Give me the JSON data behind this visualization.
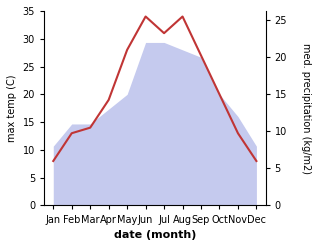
{
  "months": [
    "Jan",
    "Feb",
    "Mar",
    "Apr",
    "May",
    "Jun",
    "Jul",
    "Aug",
    "Sep",
    "Oct",
    "Nov",
    "Dec"
  ],
  "temperature": [
    8,
    13,
    14,
    19,
    28,
    34,
    31,
    34,
    27,
    20,
    13,
    8
  ],
  "precipitation": [
    8,
    11,
    11,
    13,
    15,
    22,
    22,
    21,
    20,
    15,
    12,
    8
  ],
  "temp_color": "#c03535",
  "precip_fill_color": "#c5caee",
  "temp_ylim": [
    0,
    35
  ],
  "precip_ylim": [
    0,
    26.25
  ],
  "temp_yticks": [
    0,
    5,
    10,
    15,
    20,
    25,
    30,
    35
  ],
  "precip_yticks": [
    0,
    5,
    10,
    15,
    20,
    25
  ],
  "ylabel_left": "max temp (C)",
  "ylabel_right": "med. precipitation (kg/m2)",
  "xlabel": "date (month)",
  "bg_color": "#ffffff"
}
